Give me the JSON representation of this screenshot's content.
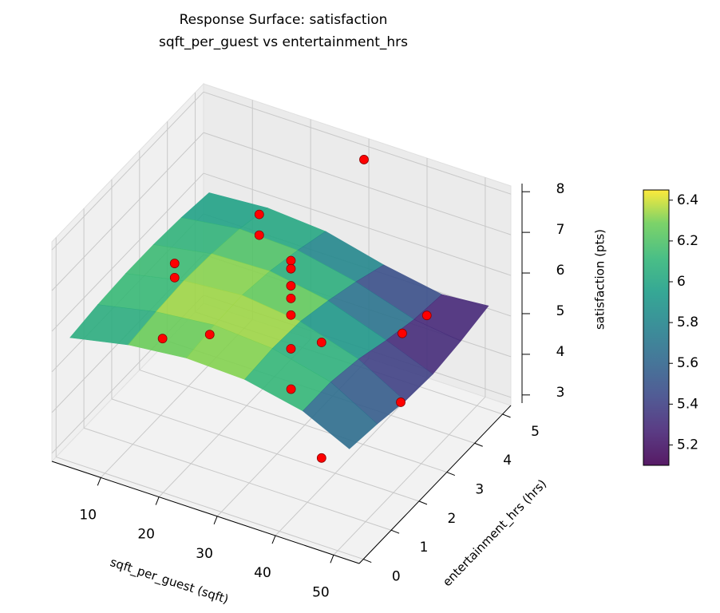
{
  "chart_data": {
    "type": "surface3d",
    "title": "Response Surface: satisfaction",
    "subtitle": "sqft_per_guest vs entertainment_hrs",
    "x_label": "sqft_per_guest (sqft)",
    "y_label": "entertainment_hrs (hrs)",
    "z_label": "satisfaction (pts)",
    "xlim": [
      1.6,
      54.4
    ],
    "xticks": [
      10,
      20,
      30,
      40,
      50
    ],
    "ylim": [
      -0.15,
      5.3
    ],
    "yticks": [
      0,
      1,
      2,
      3,
      4,
      5
    ],
    "zlim": [
      2.8,
      8.2
    ],
    "zticks": [
      3,
      4,
      5,
      6,
      7,
      8
    ],
    "grid": true,
    "surface": {
      "colormap": "viridis",
      "x": [
        4,
        14,
        24,
        34,
        44,
        52
      ],
      "y": [
        0,
        1,
        2,
        3,
        4,
        5
      ],
      "z": [
        [
          5.85,
          6.15,
          6.3,
          6.25,
          5.95,
          5.4
        ],
        [
          5.95,
          6.25,
          6.4,
          6.3,
          5.95,
          5.3
        ],
        [
          6.0,
          6.3,
          6.42,
          6.25,
          5.8,
          5.15
        ],
        [
          6.0,
          6.25,
          6.3,
          6.05,
          5.55,
          5.1
        ],
        [
          5.95,
          6.15,
          6.1,
          5.8,
          5.35,
          5.2
        ],
        [
          5.85,
          5.95,
          5.85,
          5.5,
          5.25,
          5.35
        ]
      ]
    },
    "scatter": {
      "color": "#ff0000",
      "x": [
        30.6,
        13.8,
        13.8,
        14.8,
        14.8,
        30,
        30,
        30,
        30,
        30,
        24.5,
        30,
        41.4,
        41,
        15.4,
        18.3,
        34.8,
        45.9,
        45.3
      ],
      "y": [
        5,
        4.75,
        4.75,
        1.5,
        1.5,
        2.5,
        2.5,
        2.5,
        2.5,
        2.5,
        4.75,
        2.5,
        5,
        4.2,
        0.94,
        2.03,
        1.5,
        3.12,
        0.4
      ],
      "z": [
        7.93,
        5.96,
        5.45,
        7.12,
        6.77,
        7.2,
        7.0,
        6.58,
        6.27,
        5.86,
        3.32,
        5.03,
        4.61,
        4.72,
        5.7,
        5.16,
        4.98,
        4.03,
        4.57
      ]
    },
    "clim": [
      5.1,
      6.45
    ],
    "cticks": [
      5.2,
      5.4,
      5.6,
      5.8,
      6.0,
      6.2,
      6.4
    ]
  }
}
